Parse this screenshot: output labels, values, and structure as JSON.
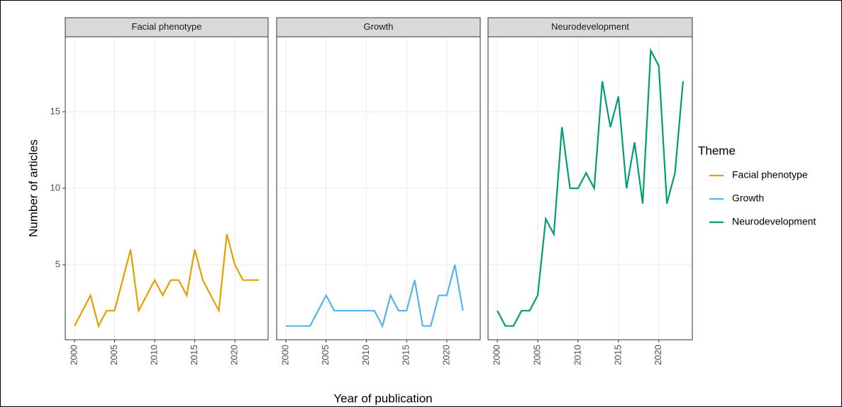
{
  "chart_data": {
    "type": "line",
    "ylabel": "Number of articles",
    "xlabel": "Year of publication",
    "legend_title": "Theme",
    "xlim": [
      1998.85,
      2024.15
    ],
    "xticks": [
      2000,
      2005,
      2010,
      2015,
      2020
    ],
    "ylim": [
      0.1,
      19.9
    ],
    "yticks": [
      5,
      10,
      15
    ],
    "grid": true,
    "legend": "right",
    "series": [
      {
        "name": "Facial phenotype",
        "color": "#E69F00",
        "x": [
          2000,
          2001,
          2002,
          2003,
          2004,
          2005,
          2006,
          2007,
          2008,
          2009,
          2010,
          2011,
          2012,
          2013,
          2014,
          2015,
          2016,
          2017,
          2018,
          2019,
          2020,
          2021,
          2022,
          2023
        ],
        "values": [
          1,
          2,
          3,
          1,
          2,
          2,
          4,
          6,
          2,
          3,
          4,
          3,
          4,
          4,
          3,
          6,
          4,
          3,
          2,
          7,
          5,
          4,
          4,
          4
        ]
      },
      {
        "name": "Growth",
        "color": "#56B4E9",
        "x": [
          2000,
          2001,
          2002,
          2003,
          2004,
          2005,
          2006,
          2007,
          2008,
          2009,
          2010,
          2011,
          2012,
          2013,
          2014,
          2015,
          2016,
          2017,
          2018,
          2019,
          2020,
          2021,
          2022
        ],
        "values": [
          1,
          1,
          1,
          1,
          2,
          3,
          2,
          2,
          2,
          2,
          2,
          2,
          1,
          3,
          2,
          2,
          4,
          1,
          1,
          3,
          3,
          5,
          2
        ]
      },
      {
        "name": "Neurodevelopment",
        "color": "#009E73",
        "x": [
          2000,
          2001,
          2002,
          2003,
          2004,
          2005,
          2006,
          2007,
          2008,
          2009,
          2010,
          2011,
          2012,
          2013,
          2014,
          2015,
          2016,
          2017,
          2018,
          2019,
          2020,
          2021,
          2022,
          2023
        ],
        "values": [
          2,
          1,
          1,
          2,
          2,
          3,
          8,
          7,
          14,
          10,
          10,
          11,
          10,
          17,
          14,
          16,
          10,
          13,
          9,
          19,
          18,
          9,
          11,
          17
        ]
      }
    ]
  }
}
